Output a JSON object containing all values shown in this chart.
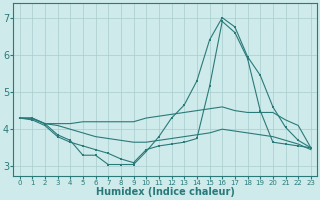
{
  "xlabel": "Humidex (Indice chaleur)",
  "bg_color": "#ceeaea",
  "grid_color": "#a8cccc",
  "line_color": "#2a7a7a",
  "xlim": [
    -0.5,
    23.5
  ],
  "ylim": [
    2.75,
    7.4
  ],
  "xticks": [
    0,
    1,
    2,
    3,
    4,
    5,
    6,
    7,
    8,
    9,
    10,
    11,
    12,
    13,
    14,
    15,
    16,
    17,
    18,
    19,
    20,
    21,
    22,
    23
  ],
  "yticks": [
    3,
    4,
    5,
    6,
    7
  ],
  "line1_x": [
    0,
    1,
    2,
    3,
    4,
    5,
    6,
    7,
    8,
    9,
    10,
    11,
    12,
    13,
    14,
    15,
    16,
    17,
    18,
    19,
    20,
    21,
    22,
    23
  ],
  "line1_y": [
    4.3,
    4.3,
    4.15,
    3.85,
    3.7,
    3.3,
    3.3,
    3.05,
    3.05,
    3.05,
    3.4,
    3.8,
    4.3,
    4.65,
    5.3,
    6.4,
    7.0,
    6.75,
    5.95,
    5.45,
    4.6,
    4.05,
    3.7,
    3.5
  ],
  "line2_x": [
    0,
    1,
    2,
    3,
    4,
    5,
    6,
    7,
    8,
    9,
    10,
    11,
    12,
    13,
    14,
    15,
    16,
    17,
    18,
    19,
    20,
    21,
    22,
    23
  ],
  "line2_y": [
    4.3,
    4.3,
    4.15,
    4.15,
    4.15,
    4.2,
    4.2,
    4.2,
    4.2,
    4.2,
    4.3,
    4.35,
    4.4,
    4.45,
    4.5,
    4.55,
    4.6,
    4.5,
    4.45,
    4.45,
    4.45,
    4.25,
    4.1,
    3.5
  ],
  "line3_x": [
    0,
    1,
    2,
    3,
    4,
    5,
    6,
    7,
    8,
    9,
    10,
    11,
    12,
    13,
    14,
    15,
    16,
    17,
    18,
    19,
    20,
    21,
    22,
    23
  ],
  "line3_y": [
    4.3,
    4.25,
    4.1,
    3.8,
    3.65,
    3.55,
    3.45,
    3.35,
    3.2,
    3.1,
    3.45,
    3.55,
    3.6,
    3.65,
    3.75,
    5.15,
    6.9,
    6.6,
    5.9,
    4.5,
    3.65,
    3.6,
    3.55,
    3.5
  ],
  "line4_x": [
    0,
    1,
    2,
    3,
    4,
    5,
    6,
    7,
    8,
    9,
    10,
    11,
    12,
    13,
    14,
    15,
    16,
    17,
    18,
    19,
    20,
    21,
    22,
    23
  ],
  "line4_y": [
    4.3,
    4.28,
    4.15,
    4.1,
    4.0,
    3.9,
    3.8,
    3.75,
    3.7,
    3.65,
    3.65,
    3.7,
    3.75,
    3.8,
    3.85,
    3.9,
    4.0,
    3.95,
    3.9,
    3.85,
    3.8,
    3.7,
    3.6,
    3.45
  ]
}
